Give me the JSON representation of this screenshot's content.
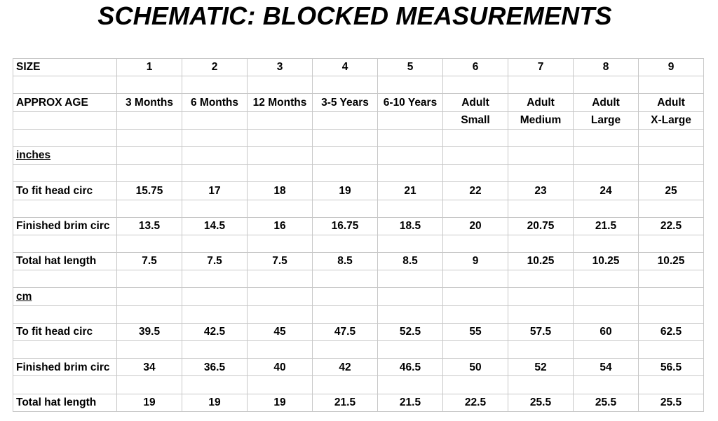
{
  "title": "SCHEMATIC: BLOCKED MEASUREMENTS",
  "table": {
    "size_label": "SIZE",
    "sizes": [
      "1",
      "2",
      "3",
      "4",
      "5",
      "6",
      "7",
      "8",
      "9"
    ],
    "age_label": "APPROX AGE",
    "ages_line1": [
      "3 Months",
      "6 Months",
      "12 Months",
      "3-5 Years",
      "6-10 Years",
      "Adult",
      "Adult",
      "Adult",
      "Adult"
    ],
    "ages_line2": [
      "",
      "",
      "",
      "",
      "",
      "Small",
      "Medium",
      "Large",
      "X-Large"
    ],
    "sections": [
      {
        "unit": "inches",
        "rows": [
          {
            "label": "To fit head circ",
            "values": [
              "15.75",
              "17",
              "18",
              "19",
              "21",
              "22",
              "23",
              "24",
              "25"
            ]
          },
          {
            "label": "Finished brim circ",
            "values": [
              "13.5",
              "14.5",
              "16",
              "16.75",
              "18.5",
              "20",
              "20.75",
              "21.5",
              "22.5"
            ]
          },
          {
            "label": "Total hat length",
            "values": [
              "7.5",
              "7.5",
              "7.5",
              "8.5",
              "8.5",
              "9",
              "10.25",
              "10.25",
              "10.25"
            ]
          }
        ]
      },
      {
        "unit": "cm",
        "rows": [
          {
            "label": "To fit head circ",
            "values": [
              "39.5",
              "42.5",
              "45",
              "47.5",
              "52.5",
              "55",
              "57.5",
              "60",
              "62.5"
            ]
          },
          {
            "label": "Finished brim circ",
            "values": [
              "34",
              "36.5",
              "40",
              "42",
              "46.5",
              "50",
              "52",
              "54",
              "56.5"
            ]
          },
          {
            "label": "Total hat length",
            "values": [
              "19",
              "19",
              "19",
              "21.5",
              "21.5",
              "22.5",
              "25.5",
              "25.5",
              "25.5"
            ]
          }
        ]
      }
    ]
  }
}
